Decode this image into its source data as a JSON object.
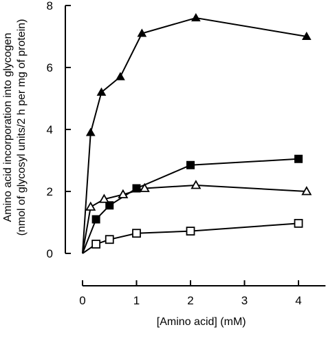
{
  "chart_data": {
    "type": "line",
    "title": "",
    "xlabel": "[Amino acid] (mM)",
    "ylabel_line1": "Amino acid incorporation into glycogen",
    "ylabel_line2": "(nmol of glycosyl units/2 h per mg of protein)",
    "xlim": [
      0,
      4.5
    ],
    "ylim": [
      0,
      8
    ],
    "xticks": [
      0,
      1,
      2,
      3,
      4
    ],
    "yticks": [
      0,
      2,
      4,
      6,
      8
    ],
    "series": [
      {
        "marker": "filled-triangle",
        "x": [
          0,
          0.15,
          0.35,
          0.7,
          1.1,
          2.1,
          4.15
        ],
        "y": [
          0,
          3.9,
          5.2,
          5.7,
          7.1,
          7.6,
          7.0
        ]
      },
      {
        "marker": "filled-square",
        "x": [
          0,
          0.25,
          0.5,
          1.0,
          2.0,
          4.0
        ],
        "y": [
          0,
          1.1,
          1.55,
          2.1,
          2.85,
          3.05
        ]
      },
      {
        "marker": "open-triangle",
        "x": [
          0,
          0.15,
          0.4,
          0.75,
          1.15,
          2.1,
          4.15
        ],
        "y": [
          0,
          1.5,
          1.75,
          1.9,
          2.1,
          2.2,
          2.0
        ]
      },
      {
        "marker": "open-square",
        "x": [
          0,
          0.25,
          0.5,
          1.0,
          2.0,
          4.0
        ],
        "y": [
          0,
          0.3,
          0.45,
          0.65,
          0.72,
          0.97
        ]
      }
    ]
  }
}
